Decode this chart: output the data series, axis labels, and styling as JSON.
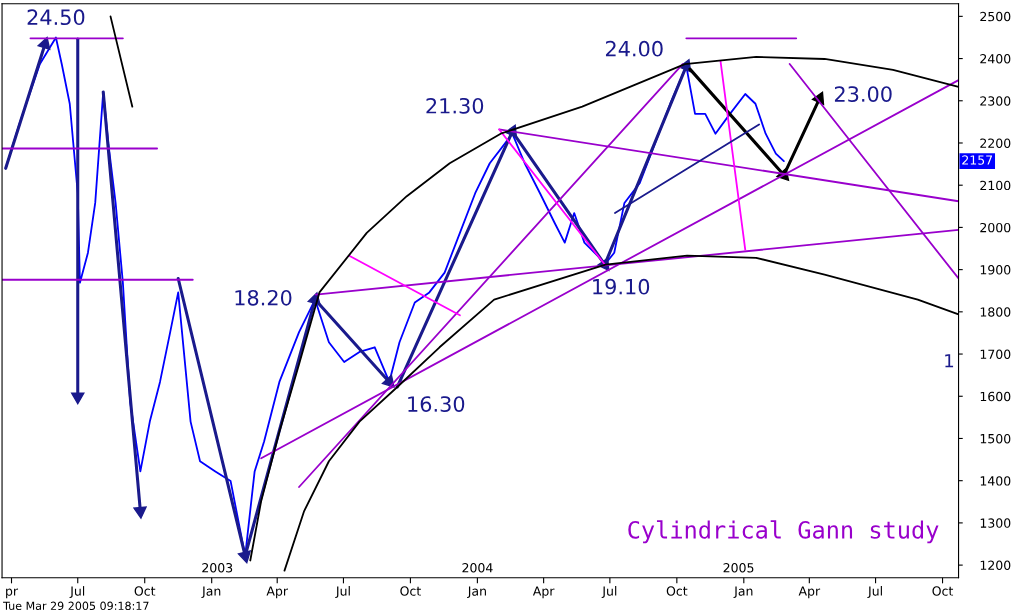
{
  "chart_data": {
    "type": "line",
    "xlim": [
      "2002-03-19",
      "2005-10-23"
    ],
    "ylim": [
      1170,
      2530
    ],
    "xticks": [
      {
        "value": "2002-04-01",
        "label": "pr"
      },
      {
        "value": "2002-07-01",
        "label": "Jul"
      },
      {
        "value": "2002-10-01",
        "label": "Oct"
      },
      {
        "value": "2003-01-01",
        "label": "Jan"
      },
      {
        "value": "2003-04-01",
        "label": "Apr"
      },
      {
        "value": "2003-07-01",
        "label": "Jul"
      },
      {
        "value": "2003-10-01",
        "label": "Oct"
      },
      {
        "value": "2004-01-01",
        "label": "Jan"
      },
      {
        "value": "2004-04-01",
        "label": "Apr"
      },
      {
        "value": "2004-07-01",
        "label": "Jul"
      },
      {
        "value": "2004-10-01",
        "label": "Oct"
      },
      {
        "value": "2005-01-01",
        "label": "Jan"
      },
      {
        "value": "2005-04-01",
        "label": "Apr"
      },
      {
        "value": "2005-07-01",
        "label": "Jul"
      },
      {
        "value": "2005-10-01",
        "label": "Oct"
      }
    ],
    "yticks": [
      1200,
      1300,
      1400,
      1500,
      1600,
      1700,
      1800,
      1900,
      2000,
      2100,
      2200,
      2300,
      2400,
      2500
    ],
    "grid": false,
    "series": [
      {
        "color": "#0000ff",
        "x": [
          "2002-03-24",
          "2002-04-12",
          "2002-05-10",
          "2002-06-01",
          "2002-06-09",
          "2002-06-20",
          "2002-07-01",
          "2002-07-04",
          "2002-07-15",
          "2002-07-25",
          "2002-08-05",
          "2002-08-12",
          "2002-08-22",
          "2002-09-01",
          "2002-09-11",
          "2002-09-25",
          "2002-10-08",
          "2002-10-22",
          "2002-11-05",
          "2002-11-16",
          "2002-12-03",
          "2002-12-16",
          "2003-01-06",
          "2003-01-27",
          "2003-02-16",
          "2003-03-01",
          "2003-03-14",
          "2003-04-04",
          "2003-05-01",
          "2003-05-23",
          "2003-06-11",
          "2003-07-02",
          "2003-07-23",
          "2003-08-13",
          "2003-09-02",
          "2003-09-16",
          "2003-10-07",
          "2003-10-27",
          "2003-11-17",
          "2003-12-08",
          "2003-12-29",
          "2004-01-18",
          "2004-02-08",
          "2004-02-18",
          "2004-03-06",
          "2004-03-27",
          "2004-04-16",
          "2004-04-30",
          "2004-05-13",
          "2004-05-27",
          "2004-06-17",
          "2004-06-24",
          "2004-07-07",
          "2004-07-21",
          "2004-08-11",
          "2004-09-01",
          "2004-09-22",
          "2004-10-14",
          "2004-10-26",
          "2004-11-09",
          "2004-11-23",
          "2004-12-13",
          "2005-01-03",
          "2005-01-17",
          "2005-01-31",
          "2005-02-14",
          "2005-02-25"
        ],
        "values": [
          2140,
          2246,
          2387,
          2450,
          2387,
          2293,
          2081,
          1869,
          1940,
          2058,
          2321,
          2199,
          2058,
          1869,
          1587,
          1422,
          1540,
          1634,
          1752,
          1846,
          1540,
          1446,
          1422,
          1399,
          1222,
          1422,
          1493,
          1634,
          1752,
          1829,
          1728,
          1681,
          1705,
          1716,
          1634,
          1728,
          1822,
          1846,
          1893,
          1987,
          2081,
          2152,
          2199,
          2222,
          2152,
          2081,
          2011,
          1964,
          2034,
          1964,
          1928,
          1912,
          1940,
          2058,
          2105,
          2199,
          2293,
          2382,
          2269,
          2269,
          2222,
          2269,
          2316,
          2293,
          2222,
          2175,
          2157
        ]
      },
      {
        "color": "#1a1a8c",
        "marker": "triangle",
        "x": [
          "2002-03-24",
          "2002-05-17"
        ],
        "values": [
          2140,
          2434
        ]
      },
      {
        "color": "#1a1a8c",
        "marker": "triangle",
        "x": [
          "2002-07-01",
          "2002-07-01"
        ],
        "values": [
          2446,
          1599
        ]
      },
      {
        "color": "#1a1a8c",
        "marker": "triangle",
        "x": [
          "2002-08-05",
          "2002-09-25"
        ],
        "values": [
          2321,
          1328
        ]
      },
      {
        "color": "#1a1a8c",
        "marker": "triangle",
        "x": [
          "2002-11-16",
          "2003-02-16"
        ],
        "values": [
          1879,
          1222
        ]
      },
      {
        "color": "#1a1a8c",
        "marker": "triangle",
        "x": [
          "2003-02-16",
          "2003-05-23"
        ],
        "values": [
          1222,
          1829
        ]
      },
      {
        "color": "#1a1a8c",
        "marker": "triangle",
        "x": [
          "2003-05-23",
          "2003-09-02"
        ],
        "values": [
          1829,
          1634
        ]
      },
      {
        "color": "#1a1a8c",
        "marker": "triangle",
        "x": [
          "2003-09-13",
          "2004-02-18"
        ],
        "values": [
          1622,
          2227
        ]
      },
      {
        "color": "#1a1a8c",
        "marker": "triangle",
        "x": [
          "2004-02-18",
          "2004-06-24"
        ],
        "values": [
          2227,
          1912
        ]
      },
      {
        "color": "#1a1a8c",
        "marker": "triangle",
        "x": [
          "2004-06-24",
          "2004-10-14"
        ],
        "values": [
          1912,
          2382
        ]
      },
      {
        "color": "#000000",
        "marker": "triangle",
        "x": [
          "2004-10-19",
          "2005-02-25"
        ],
        "values": [
          2375,
          2124
        ]
      },
      {
        "color": "#000000",
        "marker": "triangle",
        "x": [
          "2005-02-25",
          "2005-04-15"
        ],
        "values": [
          2124,
          2305
        ]
      },
      {
        "color": "#9900cc",
        "x": [
          "2002-04-27",
          "2002-09-01"
        ],
        "values": [
          2448,
          2448
        ]
      },
      {
        "color": "#9900cc",
        "x": [
          "2002-03-19",
          "2002-10-18"
        ],
        "values": [
          2187,
          2187
        ]
      },
      {
        "color": "#9900cc",
        "x": [
          "2002-03-19",
          "2002-12-06"
        ],
        "values": [
          1876,
          1876
        ]
      },
      {
        "color": "#9900cc",
        "x": [
          "2004-10-14",
          "2005-03-14"
        ],
        "values": [
          2448,
          2448
        ]
      },
      {
        "color": "#9900cc",
        "x": [
          "2003-03-10",
          "2005-10-23"
        ],
        "values": [
          1453,
          2349
        ]
      },
      {
        "color": "#9900cc",
        "x": [
          "2003-05-01",
          "2004-10-09"
        ],
        "values": [
          1385,
          2387
        ]
      },
      {
        "color": "#9900cc",
        "x": [
          "2003-05-24",
          "2005-10-23"
        ],
        "values": [
          1841,
          1994
        ]
      },
      {
        "color": "#9900cc",
        "x": [
          "2004-01-31",
          "2005-10-23"
        ],
        "values": [
          2232,
          2062
        ]
      },
      {
        "color": "#9900cc",
        "x": [
          "2005-03-05",
          "2005-10-23"
        ],
        "values": [
          2387,
          1879
        ]
      },
      {
        "color": "#ff00ff",
        "x": [
          "2003-07-09",
          "2003-12-08"
        ],
        "values": [
          1933,
          1792
        ]
      },
      {
        "color": "#ff00ff",
        "x": [
          "2004-01-31",
          "2004-06-24"
        ],
        "values": [
          2232,
          1912
        ]
      },
      {
        "color": "#ff00ff",
        "x": [
          "2004-11-30",
          "2005-01-03"
        ],
        "values": [
          2394,
          1947
        ]
      },
      {
        "color": "#000000",
        "x": [
          "2002-08-15",
          "2002-09-14"
        ],
        "values": [
          2500,
          2286
        ]
      },
      {
        "color": "#1a1a8c",
        "x": [
          "2004-07-08",
          "2005-01-22"
        ],
        "values": [
          2034,
          2244
        ]
      },
      {
        "color": "#000000",
        "x": [
          "2003-02-23",
          "2003-03-10",
          "2003-04-04",
          "2003-05-01",
          "2003-05-29",
          "2003-08-02",
          "2003-09-26",
          "2003-11-24",
          "2004-02-02",
          "2004-05-24",
          "2004-10-12",
          "2005-01-18",
          "2005-04-22",
          "2005-07-25",
          "2005-10-23"
        ],
        "values": [
          1211,
          1352,
          1516,
          1676,
          1846,
          1987,
          2074,
          2152,
          2222,
          2286,
          2387,
          2404,
          2399,
          2373,
          2333
        ]
      },
      {
        "color": "#000000",
        "x": [
          "2003-04-11",
          "2003-05-08",
          "2003-06-11",
          "2003-07-23",
          "2003-09-13",
          "2003-11-10",
          "2004-01-24",
          "2004-06-25",
          "2004-10-15",
          "2005-01-18",
          "2005-04-22",
          "2005-08-28",
          "2005-10-23"
        ],
        "values": [
          1187,
          1328,
          1446,
          1540,
          1622,
          1716,
          1829,
          1912,
          1933,
          1928,
          1888,
          1829,
          1794
        ]
      }
    ],
    "annotations": [
      {
        "text": "24.50",
        "x": "2002-06-01",
        "y": 2450
      },
      {
        "text": "18.20",
        "x": "2003-05-23",
        "y": 1829
      },
      {
        "text": "16.30",
        "x": "2003-09-02",
        "y": 1634
      },
      {
        "text": "21.30",
        "x": "2004-02-18",
        "y": 2227
      },
      {
        "text": "19.10",
        "x": "2004-06-24",
        "y": 1912
      },
      {
        "text": "24.00",
        "x": "2004-10-14",
        "y": 2382
      },
      {
        "text": "23.00",
        "x": "2005-04-15",
        "y": 2305
      },
      {
        "text": "2157",
        "y": 2157
      },
      "2003",
      "2004",
      "2005",
      "Cylindrical Gann study",
      "1",
      "Tue Mar 29 2005 09:18:17"
    ]
  }
}
